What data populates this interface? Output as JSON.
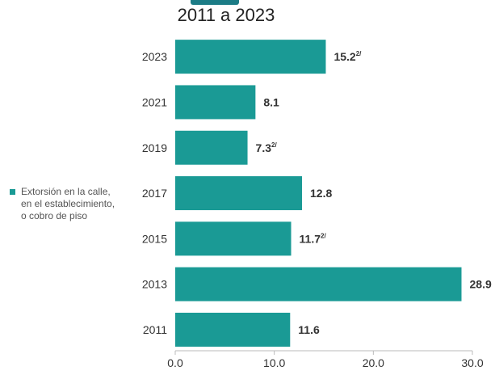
{
  "chart_data": {
    "type": "bar",
    "orientation": "horizontal",
    "subtitle": "2011 a 2023",
    "categories": [
      "2023",
      "2021",
      "2019",
      "2017",
      "2015",
      "2013",
      "2011"
    ],
    "series": [
      {
        "name": "Extorsión en la calle, en el establecimiento, o cobro de piso",
        "values": [
          15.2,
          8.1,
          7.3,
          12.8,
          11.7,
          28.9,
          11.6
        ]
      }
    ],
    "data_labels": [
      "15.2",
      "8.1",
      "7.3",
      "12.8",
      "11.7",
      "28.9",
      "11.6"
    ],
    "label_notes": [
      "2/",
      "",
      "2/",
      "",
      "2/",
      "",
      ""
    ],
    "x_ticks": [
      "0.0",
      "10.0",
      "20.0",
      "30.0"
    ],
    "xlim": [
      0,
      30
    ],
    "grid": false,
    "legend_position": "left",
    "colors": {
      "bar": "#1a9a95",
      "text": "#333333",
      "legend_text": "#555555",
      "axis": "#bbbbbb"
    }
  }
}
